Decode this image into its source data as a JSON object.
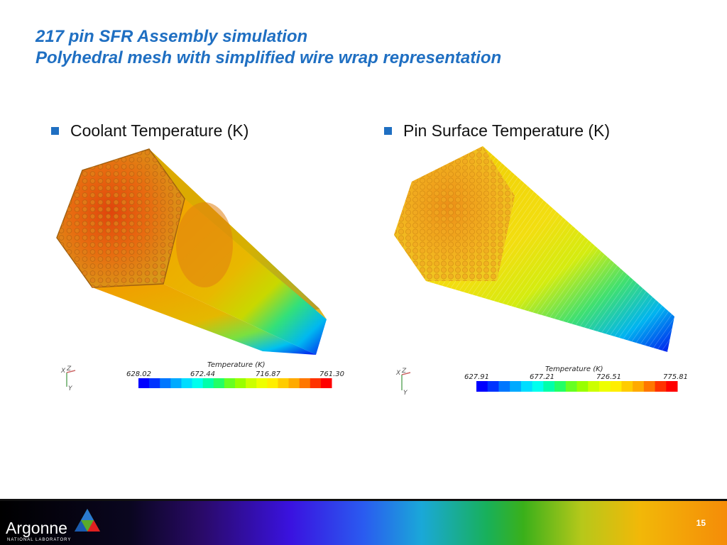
{
  "slide": {
    "title_line1": "217 pin SFR Assembly simulation",
    "title_line2": "Polyhedral mesh with simplified wire wrap representation",
    "page_number": "15"
  },
  "left_panel": {
    "bullet": "Coolant Temperature (K)",
    "colorbar": {
      "title": "Temperature (K)",
      "ticks": [
        "628.02",
        "672.44",
        "716.87",
        "761.30"
      ],
      "min": 628.02,
      "max": 761.3
    },
    "axis_triad": "X Z Y"
  },
  "right_panel": {
    "bullet": "Pin Surface Temperature (K)",
    "colorbar": {
      "title": "Temperature (K)",
      "ticks": [
        "627.91",
        "677.21",
        "726.51",
        "775.81"
      ],
      "min": 627.91,
      "max": 775.81
    },
    "axis_triad": "X Z Y"
  },
  "colormap": [
    "#0000ff",
    "#0033ff",
    "#0077ff",
    "#00aaff",
    "#00ddff",
    "#00ffee",
    "#00ffaa",
    "#22ff66",
    "#66ff22",
    "#99ff00",
    "#ccff00",
    "#eeff00",
    "#ffee00",
    "#ffcc00",
    "#ffaa00",
    "#ff7700",
    "#ff3300",
    "#ff0000"
  ],
  "footer": {
    "logo_word": "Argonne",
    "logo_sub": "NATIONAL LABORATORY"
  }
}
